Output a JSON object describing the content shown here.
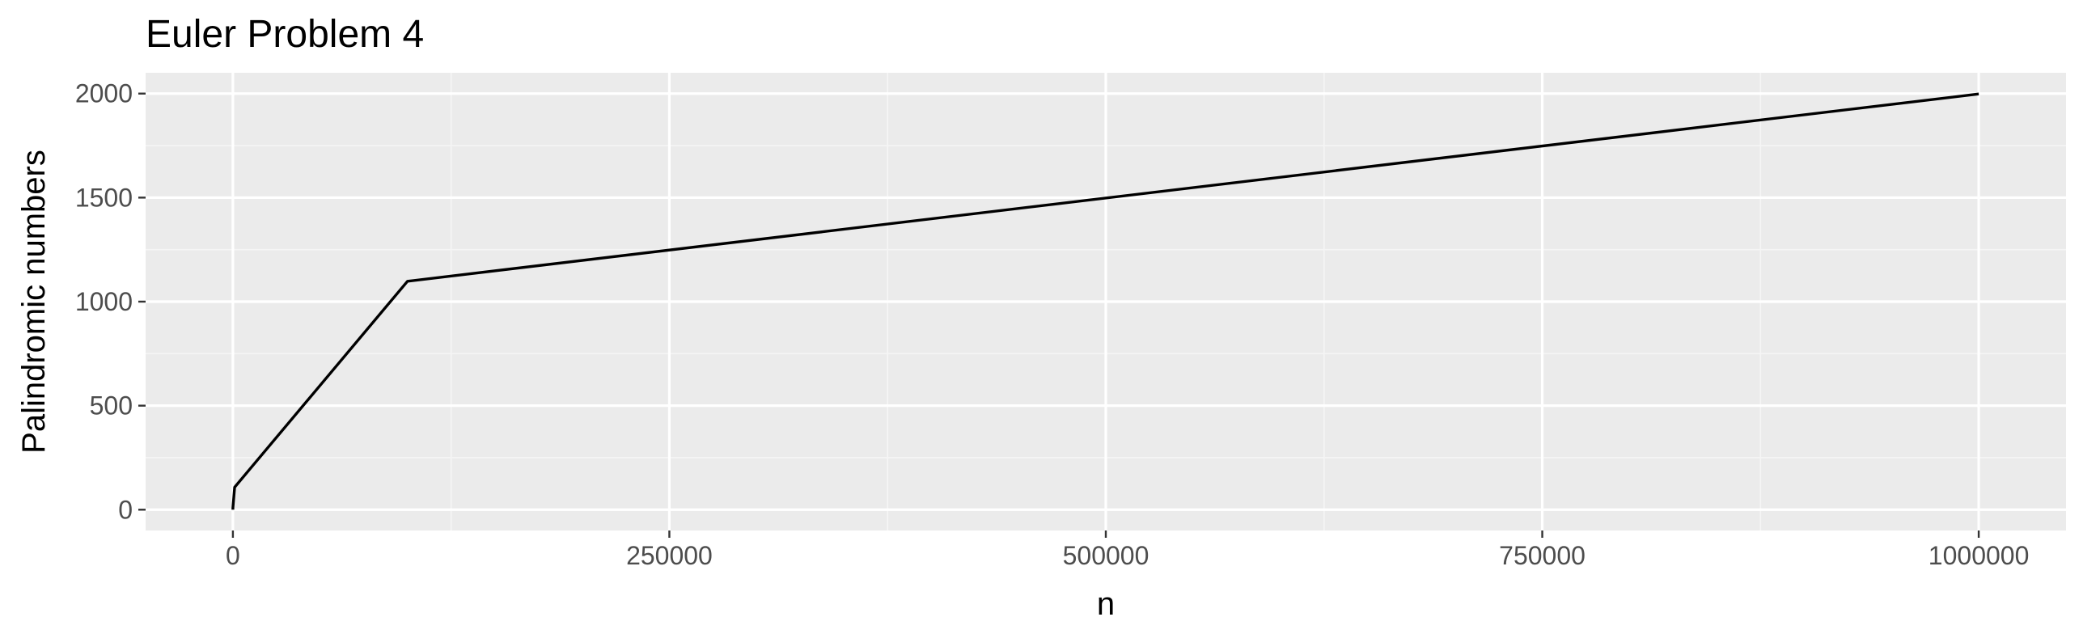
{
  "chart_data": {
    "type": "line",
    "title": "Euler Problem 4",
    "xlabel": "n",
    "ylabel": "Palindromic numbers",
    "xlim": [
      -50000,
      1050000
    ],
    "ylim": [
      -100,
      2100
    ],
    "x_ticks": [
      0,
      250000,
      500000,
      750000,
      1000000
    ],
    "x_tick_labels": [
      "0",
      "250000",
      "500000",
      "750000",
      "1000000"
    ],
    "y_ticks": [
      0,
      500,
      1000,
      1500,
      2000
    ],
    "y_tick_labels": [
      "0",
      "500",
      "1000",
      "1500",
      "2000"
    ],
    "grid": true,
    "series": [
      {
        "x": [
          1,
          10,
          100,
          1000,
          10000,
          100000,
          1000000
        ],
        "y": [
          0,
          9,
          18,
          108,
          198,
          1098,
          1998
        ]
      }
    ],
    "colors": {
      "panel_background": "#ebebeb",
      "grid_major": "#ffffff",
      "grid_minor": "#f5f5f5",
      "line": "#000000",
      "tick_text": "#4d4d4d",
      "tick_mark": "#333333"
    }
  }
}
